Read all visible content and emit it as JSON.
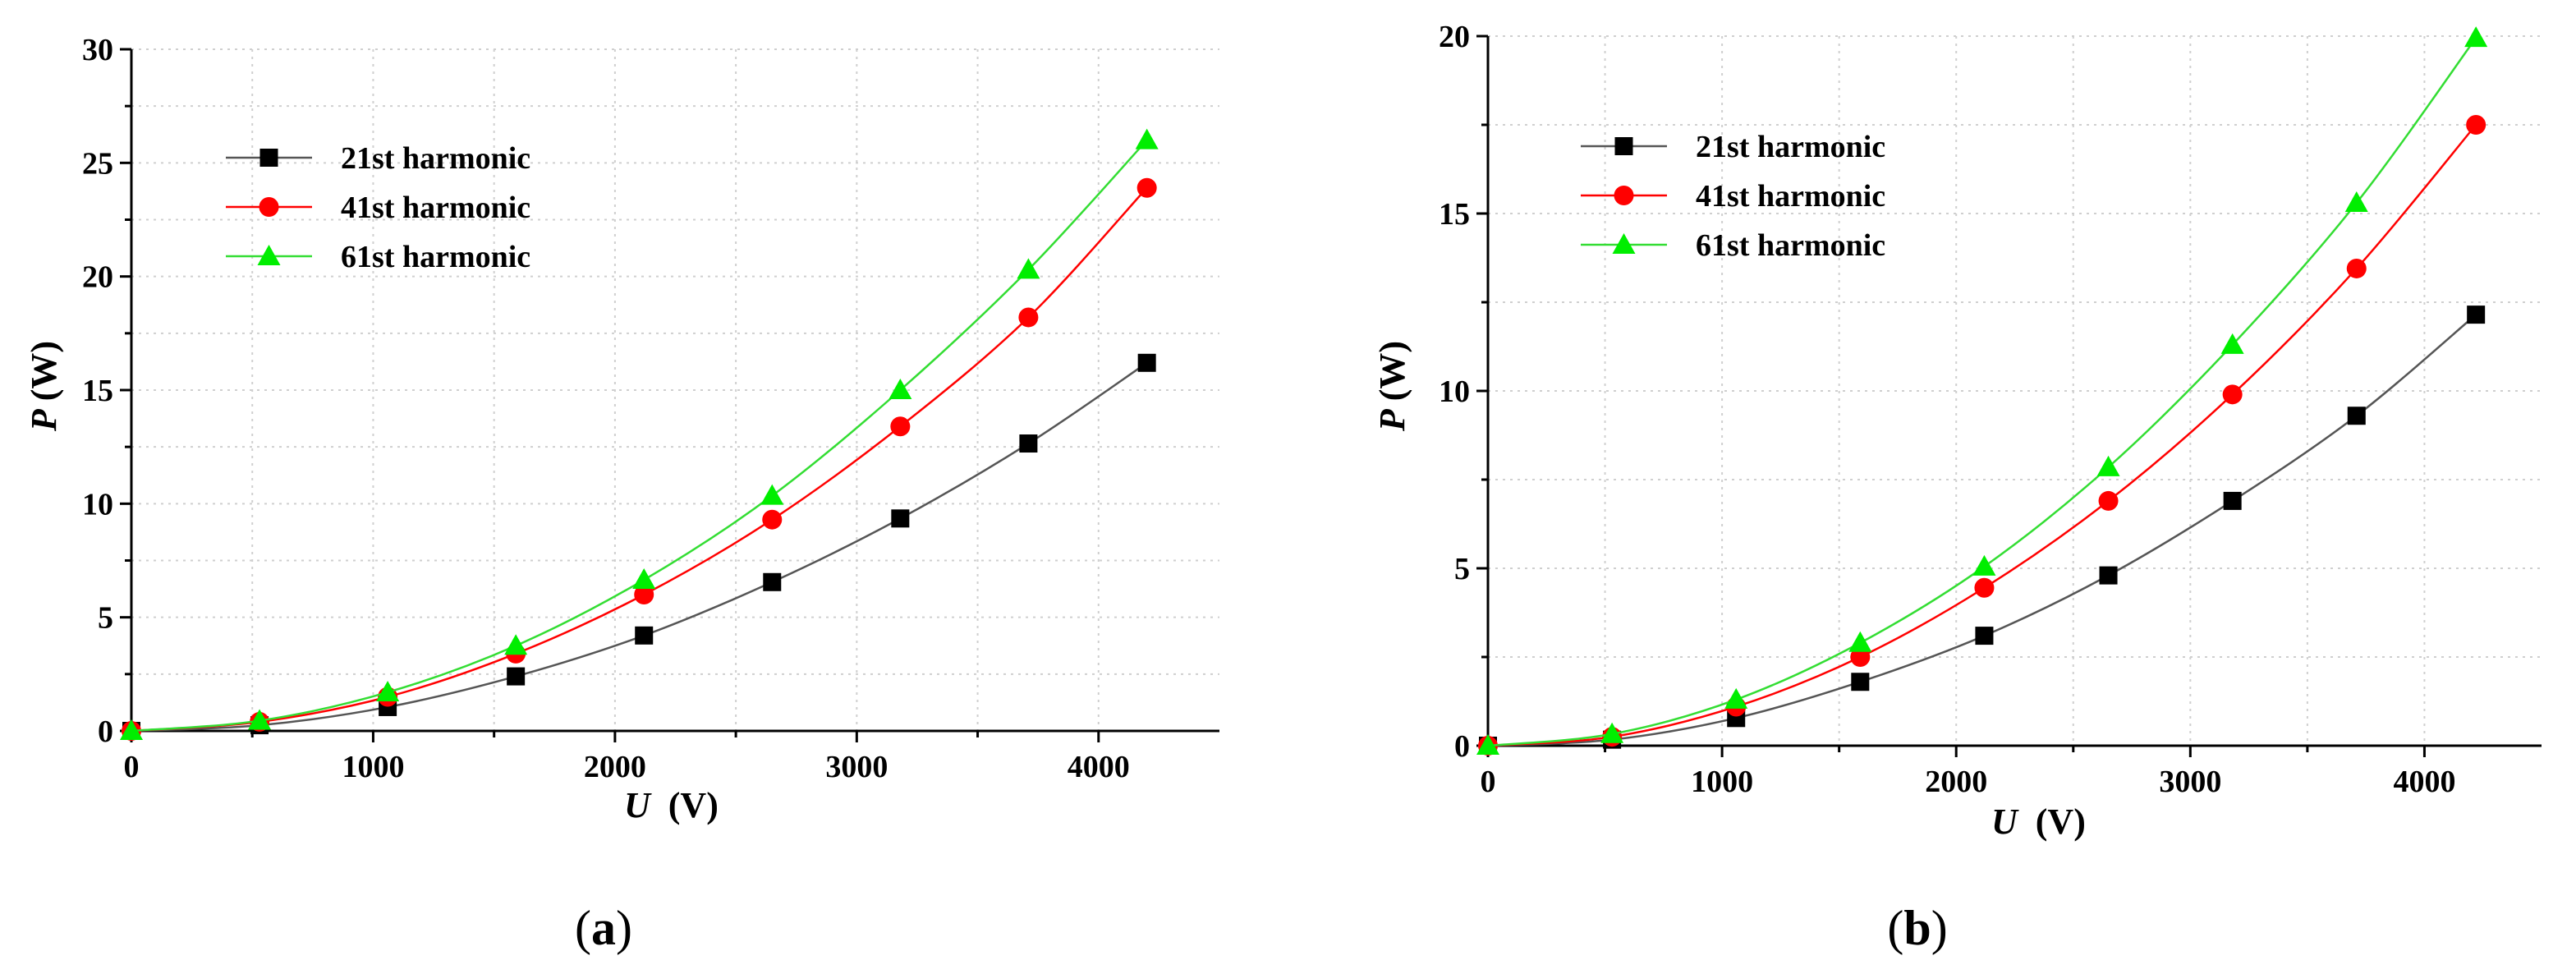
{
  "chart_data": [
    {
      "panel_label": "a",
      "type": "line",
      "xlabel_symbol": "U",
      "xlabel_unit": "(V)",
      "ylabel_symbol": "P",
      "ylabel_unit": "(W)",
      "xlim": [
        0,
        4500
      ],
      "ylim": [
        0,
        30
      ],
      "x_ticks": [
        0,
        1000,
        2000,
        3000,
        4000
      ],
      "y_ticks": [
        0,
        5,
        10,
        15,
        20,
        25,
        30
      ],
      "legend_position": "top-left",
      "x": [
        0,
        530,
        1060,
        1590,
        2120,
        2650,
        3180,
        3710,
        4200
      ],
      "series": [
        {
          "name": "21st harmonic",
          "marker": "square",
          "color": "#000000",
          "line_color": "#555555",
          "values": [
            0,
            0.25,
            1.05,
            2.4,
            4.2,
            6.55,
            9.35,
            12.65,
            16.2
          ]
        },
        {
          "name": "41st harmonic",
          "marker": "circle",
          "color": "#ff0000",
          "line_color": "#ff0000",
          "values": [
            0,
            0.4,
            1.5,
            3.4,
            6.0,
            9.3,
            13.4,
            18.2,
            23.9
          ]
        },
        {
          "name": "61st harmonic",
          "marker": "triangle",
          "color": "#00ee00",
          "line_color": "#33dd33",
          "values": [
            0,
            0.45,
            1.7,
            3.75,
            6.65,
            10.35,
            15.0,
            20.3,
            26.0
          ]
        }
      ]
    },
    {
      "panel_label": "b",
      "type": "line",
      "xlabel_symbol": "U",
      "xlabel_unit": "(V)",
      "ylabel_symbol": "P",
      "ylabel_unit": "(W)",
      "xlim": [
        0,
        4500
      ],
      "ylim": [
        0,
        20
      ],
      "x_ticks": [
        0,
        1000,
        2000,
        3000,
        4000
      ],
      "y_ticks": [
        0,
        5,
        10,
        15,
        20
      ],
      "legend_position": "top-left",
      "x": [
        0,
        530,
        1060,
        1590,
        2120,
        2650,
        3180,
        3710,
        4220
      ],
      "series": [
        {
          "name": "21st harmonic",
          "marker": "square",
          "color": "#000000",
          "line_color": "#555555",
          "values": [
            0,
            0.17,
            0.78,
            1.8,
            3.1,
            4.8,
            6.9,
            9.3,
            12.15
          ]
        },
        {
          "name": "41st harmonic",
          "marker": "circle",
          "color": "#ff0000",
          "line_color": "#ff0000",
          "values": [
            0,
            0.25,
            1.1,
            2.5,
            4.45,
            6.9,
            9.9,
            13.45,
            17.5
          ]
        },
        {
          "name": "61st harmonic",
          "marker": "triangle",
          "color": "#00ee00",
          "line_color": "#33dd33",
          "values": [
            0,
            0.33,
            1.3,
            2.9,
            5.05,
            7.85,
            11.3,
            15.3,
            19.95
          ]
        }
      ]
    }
  ]
}
